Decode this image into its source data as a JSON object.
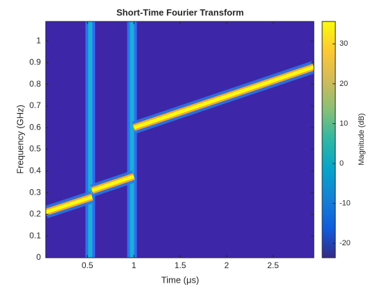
{
  "chart_data": {
    "type": "spectrogram",
    "title": "Short-Time Fourier Transform",
    "xlabel": "Time (μs)",
    "ylabel": "Frequency (GHz)",
    "colorbar_label": "Magnitude (dB)",
    "background_color": "#3e26a8",
    "xlim": [
      0.05,
      2.94
    ],
    "xticks": [
      0.5,
      1,
      1.5,
      2,
      2.5
    ],
    "ylim": [
      0,
      1.09
    ],
    "yticks": [
      0,
      0.1,
      0.2,
      0.3,
      0.4,
      0.5,
      0.6,
      0.7,
      0.8,
      0.9,
      1
    ],
    "clim": [
      -23.6,
      35.6
    ],
    "cticks": [
      -20,
      -10,
      0,
      10,
      20,
      30
    ],
    "colormap": [
      "#352a87",
      "#0f5cdd",
      "#1481d6",
      "#06a4ca",
      "#2eb7a4",
      "#87bf77",
      "#d1bb59",
      "#fec832",
      "#f9fb0e"
    ],
    "ridge_colors": [
      "#2a7be6",
      "#f3a73a",
      "#f9fb0e"
    ],
    "series": [
      {
        "x": [
          0.05,
          0.55
        ],
        "values": [
          0.21,
          0.28
        ]
      },
      {
        "x": [
          0.55,
          1.0
        ],
        "values": [
          0.31,
          0.375
        ]
      },
      {
        "x": [
          1.0,
          2.94
        ],
        "values": [
          0.6,
          0.88
        ]
      }
    ],
    "transients": {
      "x": [
        0.53,
        0.98
      ],
      "colors": [
        "#2d6ff0",
        "#1ab0d8"
      ]
    }
  }
}
